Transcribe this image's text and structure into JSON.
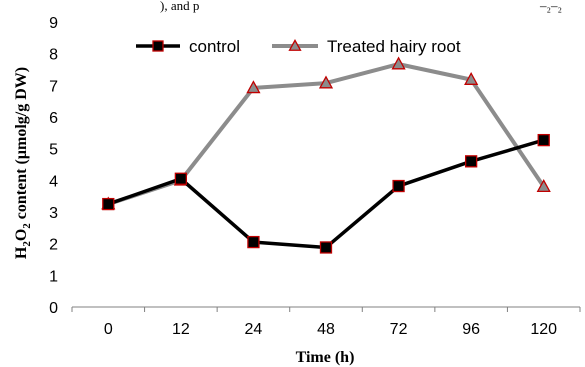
{
  "top_fragment": {
    "text": "), and p",
    "tail": "–₂–₂"
  },
  "chart_data": {
    "type": "line",
    "categories": [
      "0",
      "12",
      "24",
      "48",
      "72",
      "96",
      "120"
    ],
    "series": [
      {
        "name": "control",
        "values": [
          3.25,
          4.05,
          2.05,
          1.88,
          3.82,
          4.6,
          5.27
        ],
        "line_color": "#000000",
        "marker": "square",
        "marker_fill": "#000000",
        "marker_stroke": "#c00000"
      },
      {
        "name": "Treated hairy root",
        "values": [
          3.25,
          4.0,
          6.92,
          7.07,
          7.67,
          7.18,
          3.8
        ],
        "line_color": "#8c8c8c",
        "marker": "triangle",
        "marker_fill": "#8c8c8c",
        "marker_stroke": "#c00000"
      }
    ],
    "xlabel": "Time (h)",
    "ylabel_parts": {
      "base": "H",
      "sub1": "2",
      "mid": "O",
      "sub2": "2",
      "rest": " content (µmolg/g DW)"
    },
    "ylim": [
      0,
      9
    ],
    "yticks": [
      "0",
      "1",
      "2",
      "3",
      "4",
      "5",
      "6",
      "7",
      "8",
      "9"
    ],
    "grid": false,
    "legend_position": "top-center"
  }
}
